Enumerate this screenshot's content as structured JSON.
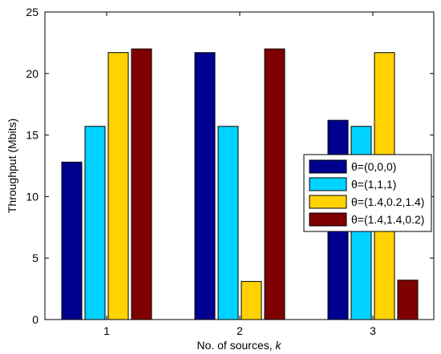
{
  "chart_data": {
    "type": "bar",
    "title": "",
    "xlabel_prefix": "No. of sources, ",
    "xlabel_var": "k",
    "ylabel": "Throughput (Mbits)",
    "categories": [
      "1",
      "2",
      "3"
    ],
    "ylim": [
      0,
      25
    ],
    "yticks": [
      "0",
      "5",
      "10",
      "15",
      "20",
      "25"
    ],
    "grid": false,
    "legend_position": "right",
    "series": [
      {
        "name": "θ=(0,0,0)",
        "color": "#00008f",
        "values": [
          12.8,
          21.7,
          16.2
        ]
      },
      {
        "name": "θ=(1,1,1)",
        "color": "#00d2ff",
        "values": [
          15.7,
          15.7,
          15.7
        ]
      },
      {
        "name": "θ=(1.4,0.2,1.4)",
        "color": "#ffd200",
        "values": [
          21.7,
          3.1,
          21.7
        ]
      },
      {
        "name": "θ=(1.4,1.4,0.2)",
        "color": "#7f0000",
        "values": [
          22.0,
          22.0,
          3.2
        ]
      }
    ]
  }
}
